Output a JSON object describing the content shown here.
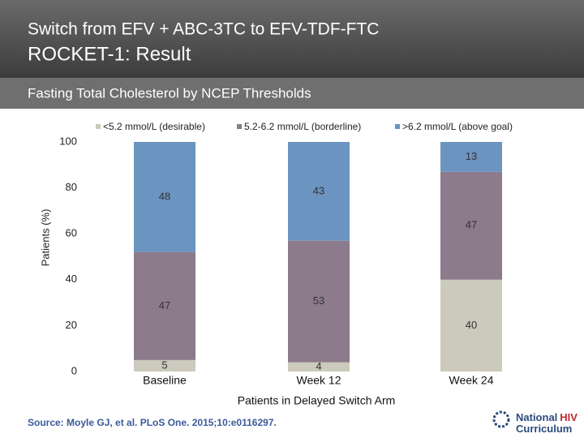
{
  "header": {
    "title": "Switch from EFV + ABC-3TC to EFV-TDF-FTC",
    "subtitle": "ROCKET-1: Result"
  },
  "chart_data": {
    "type": "bar",
    "stacked": true,
    "title": "Fasting Total Cholesterol by NCEP Thresholds",
    "ylabel": "Patients (%)",
    "xlabel": "Patients in Delayed Switch Arm",
    "categories": [
      "Baseline",
      "Week 12",
      "Week 24"
    ],
    "series": [
      {
        "name": "<5.2 mmol/L (desirable)",
        "color": "#cbcabd",
        "values": [
          5,
          4,
          40
        ]
      },
      {
        "name": "5.2-6.2 mmol/L (borderline)",
        "color": "#8b7b8c",
        "values": [
          47,
          53,
          47
        ]
      },
      {
        "name": ">6.2 mmol/L (above goal)",
        "color": "#6b94c0",
        "values": [
          48,
          43,
          13
        ]
      }
    ],
    "ylim": [
      0,
      100
    ],
    "yticks": [
      0,
      20,
      40,
      60,
      80,
      100
    ],
    "grid": false,
    "legend": "top"
  },
  "footer": {
    "source": "Source: Moyle GJ, et al. PLoS One. 2015;10:e0116297.",
    "logo": {
      "first": "National",
      "highlight": "HIV",
      "second": "Curriculum"
    }
  }
}
